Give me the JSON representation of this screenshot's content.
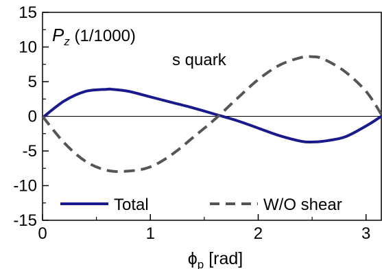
{
  "chart_data": {
    "type": "line",
    "annotations": {
      "quantity": "P",
      "quantity_sub": "z",
      "quantity_unit": " (1/1000)",
      "flavor": "s quark"
    },
    "xlabel": "ϕ",
    "xlabel_sub": "p",
    "xlabel_unit": " [rad]",
    "ylabel": "",
    "xlim": [
      0,
      3.14159
    ],
    "ylim": [
      -15,
      15
    ],
    "x_ticks": [
      0,
      1,
      2,
      3
    ],
    "x_tick_labels": [
      "0",
      "1",
      "2",
      "3"
    ],
    "y_ticks": [
      -15,
      -10,
      -5,
      0,
      5,
      10,
      15
    ],
    "y_tick_labels": [
      "-15",
      "-10",
      "-5",
      "0",
      "5",
      "10",
      "15"
    ],
    "zero_line": true,
    "grid": false,
    "legend_position": "bottom",
    "series": [
      {
        "name": "Total",
        "color": "#1a1a8c",
        "style": "solid",
        "x": [
          0,
          0.2,
          0.4,
          0.6,
          0.64,
          0.8,
          1.0,
          1.2,
          1.4,
          1.6,
          1.8,
          2.0,
          2.2,
          2.4,
          2.5,
          2.6,
          2.8,
          3.0,
          3.14159
        ],
        "y": [
          -0.2,
          2.2,
          3.6,
          3.9,
          3.9,
          3.6,
          2.8,
          2.0,
          1.2,
          0.3,
          -0.6,
          -1.7,
          -2.8,
          -3.6,
          -3.7,
          -3.6,
          -3.0,
          -1.4,
          0.0
        ]
      },
      {
        "name": "W/O shear",
        "color": "#555555",
        "style": "dashed",
        "x": [
          0,
          0.2,
          0.4,
          0.6,
          0.8,
          1.0,
          1.2,
          1.4,
          1.6,
          1.8,
          2.0,
          2.2,
          2.4,
          2.5,
          2.6,
          2.8,
          3.0,
          3.14159
        ],
        "y": [
          0.0,
          -3.8,
          -6.5,
          -7.8,
          -7.9,
          -7.3,
          -5.5,
          -3.0,
          -0.4,
          2.5,
          5.3,
          7.4,
          8.5,
          8.6,
          8.3,
          6.5,
          3.6,
          0.3
        ]
      }
    ]
  }
}
